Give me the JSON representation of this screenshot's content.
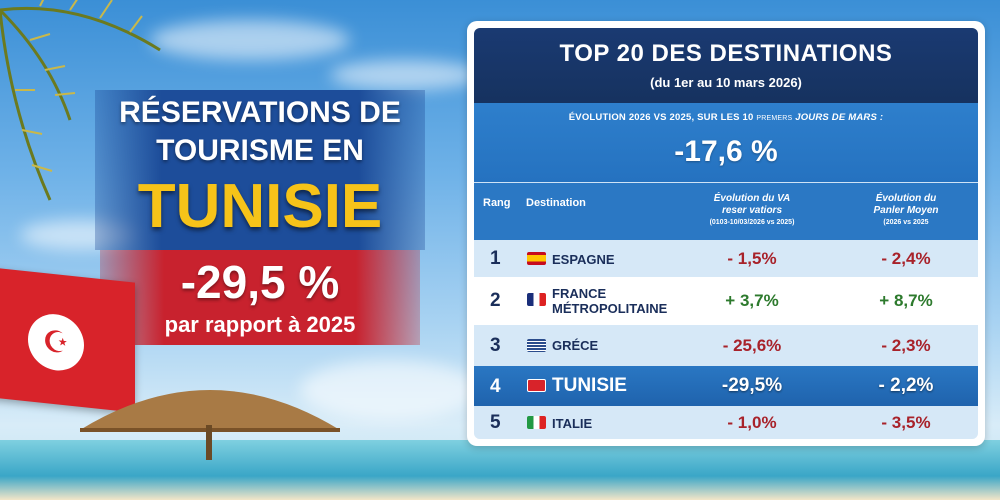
{
  "left": {
    "title_line1": "RÉSERVATIONS DE",
    "title_line2": "TOURISME EN",
    "country": "TUNISIE",
    "change": "-29,5 %",
    "change_caption": "par rapport à 2025"
  },
  "panel": {
    "title": "TOP 20 DES DESTINATIONS",
    "period": "(du 1er au 10 mars 2026)",
    "evolution_label_a": "ÉVOLUTION 2026 VS 2025, SUR LES 10",
    "evolution_label_small": "PREMERS",
    "evolution_label_b": "JOURS DE MARS :",
    "evolution_value": "-17,6 %",
    "columns": {
      "rank": "Rang",
      "destination": "Destination",
      "va_line1": "Évolution du VA",
      "va_line2": "reser vatiors",
      "va_line3": "(0103-10/03/2026 vs 2025)",
      "pm_line1": "Évolution du",
      "pm_line2": "Panler Moyen",
      "pm_line3": "(2026 vs 2025"
    },
    "rows": [
      {
        "rank": "1",
        "flag": "spain-flag-icon",
        "destination": "ESPAGNE",
        "va": "- 1,5%",
        "pm": "- 2,4%"
      },
      {
        "rank": "2",
        "flag": "france-flag-icon",
        "destination": "FRANCE",
        "destination2": "MÉTROPOLITAINE",
        "va": "+ 3,7%",
        "pm": "+ 8,7%"
      },
      {
        "rank": "3",
        "flag": "greece-flag-icon",
        "destination": "GRÉCE",
        "va": "- 25,6%",
        "pm": "- 2,3%"
      },
      {
        "rank": "4",
        "flag": "tunisia-flag-icon",
        "destination": "TUNISIE",
        "va": "-29,5%",
        "pm": "- 2,2%"
      },
      {
        "rank": "5",
        "flag": "italy-flag-icon",
        "destination": "ITALIE",
        "va": "- 1,0%",
        "pm": "- 3,5%"
      }
    ]
  },
  "colors": {
    "navy": "#16325f",
    "blue": "#2b78c4",
    "negative": "#a8222a",
    "positive": "#2d7a2d",
    "gold": "#f6c319",
    "red": "#c8222e"
  }
}
